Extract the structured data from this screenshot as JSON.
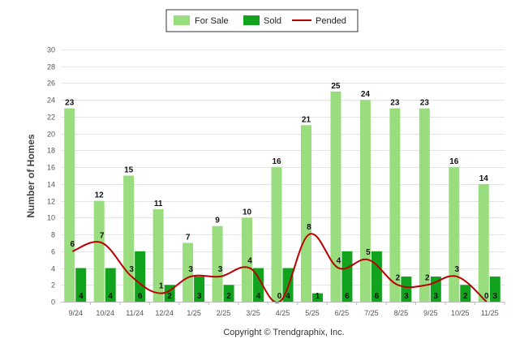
{
  "chart_data": {
    "type": "bar",
    "categories": [
      "9/24",
      "10/24",
      "11/24",
      "12/24",
      "1/25",
      "2/25",
      "3/25",
      "4/25",
      "5/25",
      "6/25",
      "7/25",
      "8/25",
      "9/25",
      "10/25",
      "11/25"
    ],
    "series": [
      {
        "name": "For Sale",
        "kind": "bar",
        "color": "#99dd7f",
        "values": [
          23,
          12,
          15,
          11,
          7,
          9,
          10,
          16,
          21,
          25,
          24,
          23,
          23,
          16,
          14
        ]
      },
      {
        "name": "Sold",
        "kind": "bar",
        "color": "#12a31e",
        "values": [
          4,
          4,
          6,
          2,
          3,
          2,
          4,
          4,
          1,
          6,
          6,
          3,
          3,
          2,
          3
        ]
      },
      {
        "name": "Pended",
        "kind": "line",
        "color": "#bb0000",
        "values": [
          6,
          7,
          3,
          1,
          3,
          3,
          4,
          0,
          8,
          4,
          5,
          2,
          2,
          3,
          0
        ]
      }
    ],
    "ylabel": "Number of Homes",
    "xlabel": "",
    "ylim": [
      0,
      30
    ],
    "yticks": [
      0,
      2,
      4,
      6,
      8,
      10,
      12,
      14,
      16,
      18,
      20,
      22,
      24,
      26,
      28,
      30
    ],
    "grid": true,
    "legend": "top-center",
    "credit": "Copyright © Trendgraphix, Inc."
  }
}
